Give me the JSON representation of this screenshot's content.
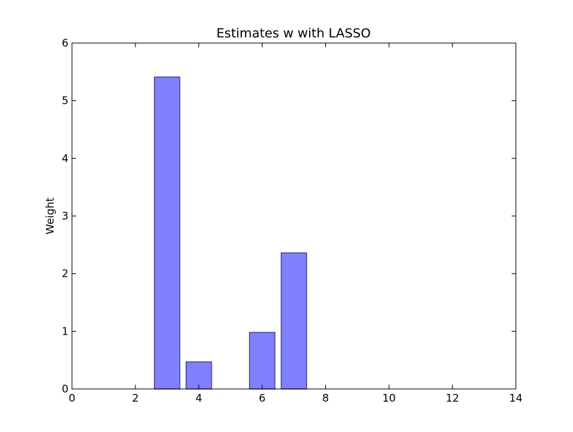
{
  "chart_data": {
    "type": "bar",
    "title": "Estimates w with LASSO",
    "xlabel": "",
    "ylabel": "Weight",
    "xlim": [
      0,
      14
    ],
    "ylim": [
      0,
      6
    ],
    "x_ticks": [
      0,
      2,
      4,
      6,
      8,
      10,
      12,
      14
    ],
    "y_ticks": [
      0,
      1,
      2,
      3,
      4,
      5,
      6
    ],
    "bar_width": 0.8,
    "x": [
      0,
      1,
      2,
      3,
      4,
      5,
      6,
      7,
      8,
      9,
      10,
      11,
      12,
      13
    ],
    "values": [
      0,
      0,
      0,
      5.41,
      0.47,
      0,
      0.98,
      2.36,
      0,
      0,
      0,
      0,
      0,
      0
    ],
    "grid": false,
    "colors": {
      "bar_fill": "#8080ff",
      "bar_edge": "#4d4d99"
    }
  }
}
